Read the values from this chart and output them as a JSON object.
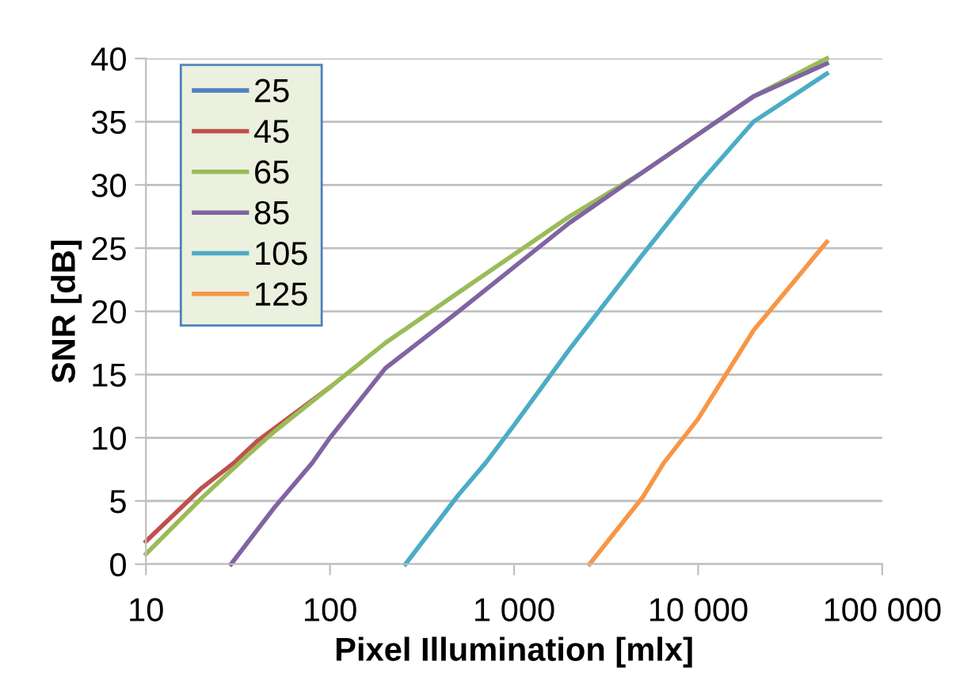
{
  "chart_data": {
    "type": "line",
    "xlabel": "Pixel Illumination [mlx]",
    "ylabel": "SNR [dB]",
    "log": "x",
    "xlim": [
      10,
      100000
    ],
    "xticks": [
      10,
      100,
      {
        "value": 1000,
        "label": "1 000"
      },
      {
        "value": 10000,
        "label": "10 000"
      },
      {
        "value": 100000,
        "label": "100 000"
      }
    ],
    "ylim": [
      0,
      40
    ],
    "yticks": [
      0,
      5,
      10,
      15,
      20,
      25,
      30,
      35,
      40
    ],
    "grid": "y",
    "legend": "top left",
    "marker": "none",
    "line_style": "solid",
    "series": [
      {
        "name": "25",
        "color": "#4f81bd"
      },
      {
        "name": "45",
        "color": "#c0504d",
        "x": [
          10,
          20,
          30,
          40,
          100
        ],
        "values": [
          1.8,
          6,
          8,
          9.7,
          14
        ]
      },
      {
        "name": "65",
        "color": "#9bbb59",
        "x": [
          10,
          20,
          35,
          50,
          100,
          200,
          500,
          1000,
          2000,
          5000,
          10000,
          20000,
          50000
        ],
        "values": [
          0.8,
          5.2,
          8.5,
          10.5,
          14,
          17.5,
          21.5,
          24.5,
          27.5,
          31,
          34,
          37,
          40
        ]
      },
      {
        "name": "85",
        "color": "#8064a2",
        "x": [
          29,
          50,
          80,
          100,
          200,
          500,
          1000,
          2000,
          5000,
          10000,
          20000,
          50000
        ],
        "values": [
          0,
          4.5,
          8,
          10,
          15.5,
          20,
          23.5,
          27,
          31,
          34,
          37,
          39.6
        ]
      },
      {
        "name": "105",
        "color": "#4bacc6",
        "x": [
          257,
          500,
          700,
          1000,
          2000,
          5000,
          10000,
          20000,
          50000
        ],
        "values": [
          0,
          5.5,
          8,
          11,
          17,
          24.5,
          30,
          35,
          38.8
        ]
      },
      {
        "name": "125",
        "color": "#f79646",
        "x": [
          2570,
          5000,
          6500,
          10000,
          20000,
          50000
        ],
        "values": [
          0,
          5.3,
          8,
          11.5,
          18.5,
          25.5
        ]
      }
    ]
  }
}
